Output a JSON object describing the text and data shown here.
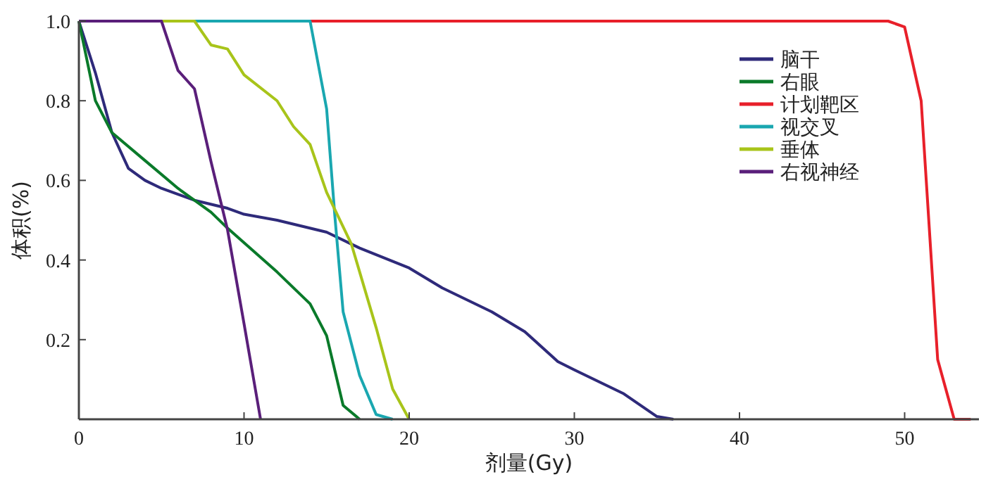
{
  "chart_data": {
    "type": "line",
    "xlabel": "剂量(Gy)",
    "ylabel": "体积(%)",
    "xlim": [
      0,
      54.5
    ],
    "ylim": [
      0,
      1.0
    ],
    "xticks": [
      0,
      10,
      20,
      30,
      40,
      50
    ],
    "yticks": [
      {
        "value": 0,
        "label": null
      },
      0.2,
      0.4,
      0.6,
      0.8,
      {
        "value": 1.0,
        "label": "1.0"
      }
    ],
    "grid": false,
    "legend": "top right",
    "line_style": "solid",
    "marker": "none",
    "series": [
      {
        "name": "脑干",
        "color": "#2e2a7a",
        "x": [
          0,
          1,
          2,
          3,
          4,
          5,
          7,
          9,
          10,
          12,
          15,
          17,
          20,
          22,
          25,
          27,
          29,
          30,
          33,
          35,
          36
        ],
        "values": [
          1.0,
          0.87,
          0.72,
          0.63,
          0.6,
          0.58,
          0.55,
          0.53,
          0.515,
          0.5,
          0.47,
          0.43,
          0.38,
          0.33,
          0.27,
          0.22,
          0.145,
          0.124,
          0.064,
          0.007,
          0
        ]
      },
      {
        "name": "右眼",
        "color": "#0a7a2a",
        "x": [
          0,
          1,
          2,
          4,
          6,
          8,
          9,
          12,
          14,
          15,
          16,
          17
        ],
        "values": [
          1.0,
          0.8,
          0.72,
          0.65,
          0.58,
          0.52,
          0.48,
          0.37,
          0.29,
          0.21,
          0.035,
          0
        ]
      },
      {
        "name": "计划靶区",
        "color": "#e8202a",
        "x": [
          0,
          49,
          50,
          51,
          52,
          53,
          54
        ],
        "values": [
          1.0,
          1.0,
          0.985,
          0.8,
          0.15,
          0,
          0
        ]
      },
      {
        "name": "视交叉",
        "color": "#1aa7b0",
        "x": [
          0,
          14,
          15,
          15.5,
          16,
          17,
          18,
          19
        ],
        "values": [
          1.0,
          1.0,
          0.78,
          0.51,
          0.27,
          0.11,
          0.012,
          0
        ]
      },
      {
        "name": "垂体",
        "color": "#a8c41a",
        "x": [
          0,
          7,
          8,
          9,
          10,
          12,
          13,
          14,
          15,
          16.5,
          18,
          19,
          20
        ],
        "values": [
          1.0,
          1.0,
          0.94,
          0.93,
          0.865,
          0.8,
          0.735,
          0.69,
          0.57,
          0.44,
          0.23,
          0.076,
          0
        ]
      },
      {
        "name": "右视神经",
        "color": "#5a1f7a",
        "x": [
          0,
          5,
          6,
          7,
          8,
          9,
          10,
          11
        ],
        "values": [
          1.0,
          1.0,
          0.876,
          0.83,
          0.647,
          0.476,
          0.24,
          0
        ]
      }
    ]
  }
}
